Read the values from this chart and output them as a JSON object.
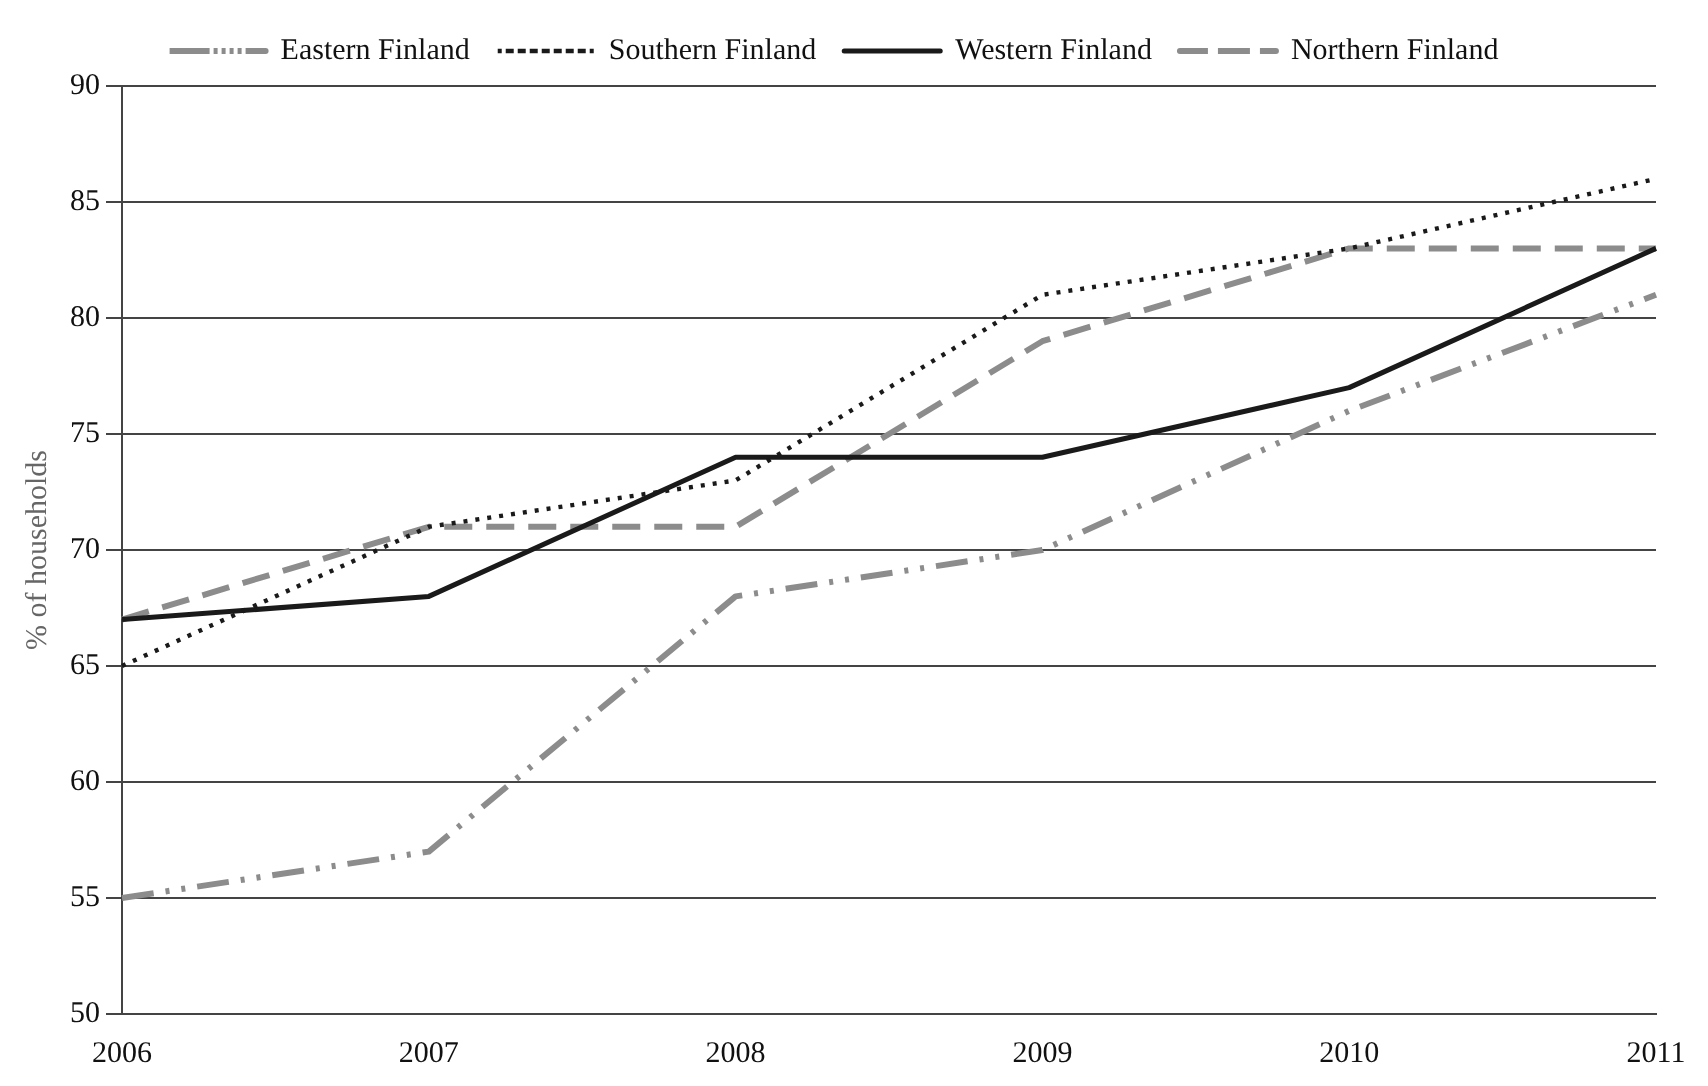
{
  "chart_data": {
    "type": "line",
    "ylabel": "% of households",
    "categories": [
      "2006",
      "2007",
      "2008",
      "2009",
      "2010",
      "2011"
    ],
    "series": [
      {
        "name": "Eastern Finland",
        "color": "#8c8c8c",
        "line_style": "dashdot",
        "values": [
          55,
          57,
          68,
          70,
          76,
          81
        ]
      },
      {
        "name": "Southern Finland",
        "color": "#1a1a1a",
        "line_style": "dotted",
        "values": [
          65,
          71,
          73,
          81,
          83,
          86
        ]
      },
      {
        "name": "Western Finland",
        "color": "#1a1a1a",
        "line_style": "solid",
        "values": [
          67,
          68,
          74,
          74,
          77,
          83
        ]
      },
      {
        "name": "Northern Finland",
        "color": "#8c8c8c",
        "line_style": "dashed",
        "values": [
          67,
          71,
          71,
          79,
          83,
          83
        ]
      }
    ],
    "ylim": [
      50,
      90
    ],
    "yticks": [
      50,
      55,
      60,
      65,
      70,
      75,
      80,
      85,
      90
    ],
    "grid": "y",
    "legend": "top",
    "marker": "none"
  }
}
